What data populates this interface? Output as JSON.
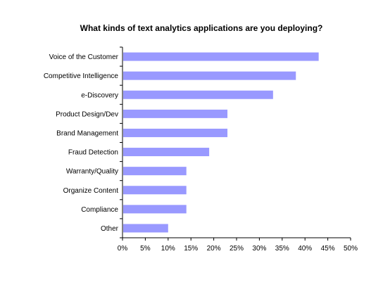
{
  "chart_data": {
    "type": "bar",
    "orientation": "horizontal",
    "title": "What kinds of text analytics applications are you deploying?",
    "categories": [
      "Voice of the Customer",
      "Competitive Intelligence",
      "e-Discovery",
      "Product Design/Dev",
      "Brand Management",
      "Fraud Detection",
      "Warranty/Quality",
      "Organize Content",
      "Compliance",
      "Other"
    ],
    "values": [
      43,
      38,
      33,
      23,
      23,
      19,
      14,
      14,
      14,
      10
    ],
    "xlim": [
      0,
      50
    ],
    "xticks": [
      "0%",
      "5%",
      "10%",
      "15%",
      "20%",
      "25%",
      "30%",
      "35%",
      "40%",
      "45%",
      "50%"
    ],
    "xlabel": "",
    "ylabel": "",
    "grid": false,
    "legend": "none",
    "bar_color": "#9999ff"
  }
}
